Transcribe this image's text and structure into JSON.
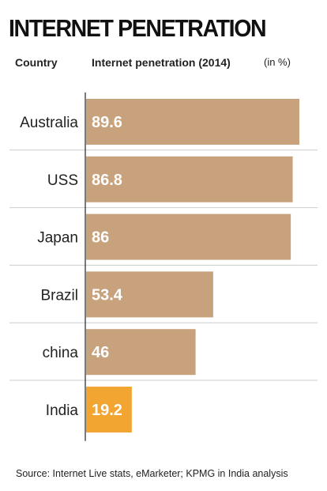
{
  "chart_data": {
    "type": "bar",
    "orientation": "horizontal",
    "title": "INTERNET PENETRATION",
    "column_headers": {
      "category": "Country",
      "value": "Internet penetration (2014)",
      "unit": "(in %)"
    },
    "categories": [
      "Australia",
      "USS",
      "Japan",
      "Brazil",
      "china",
      "India"
    ],
    "values": [
      89.6,
      86.8,
      86,
      53.4,
      46,
      19.2
    ],
    "value_labels": [
      "89.6",
      "86.8",
      "86",
      "53.4",
      "46",
      "19.2"
    ],
    "xlim": [
      0,
      89.6
    ],
    "colors": {
      "default_bar": "#c8a27c",
      "highlight_bar": "#f2a531",
      "highlight_category": "India",
      "grid": "#cccccc"
    },
    "grid": true,
    "source": "Source: Internet Live stats, eMarketer; KPMG in India analysis"
  }
}
